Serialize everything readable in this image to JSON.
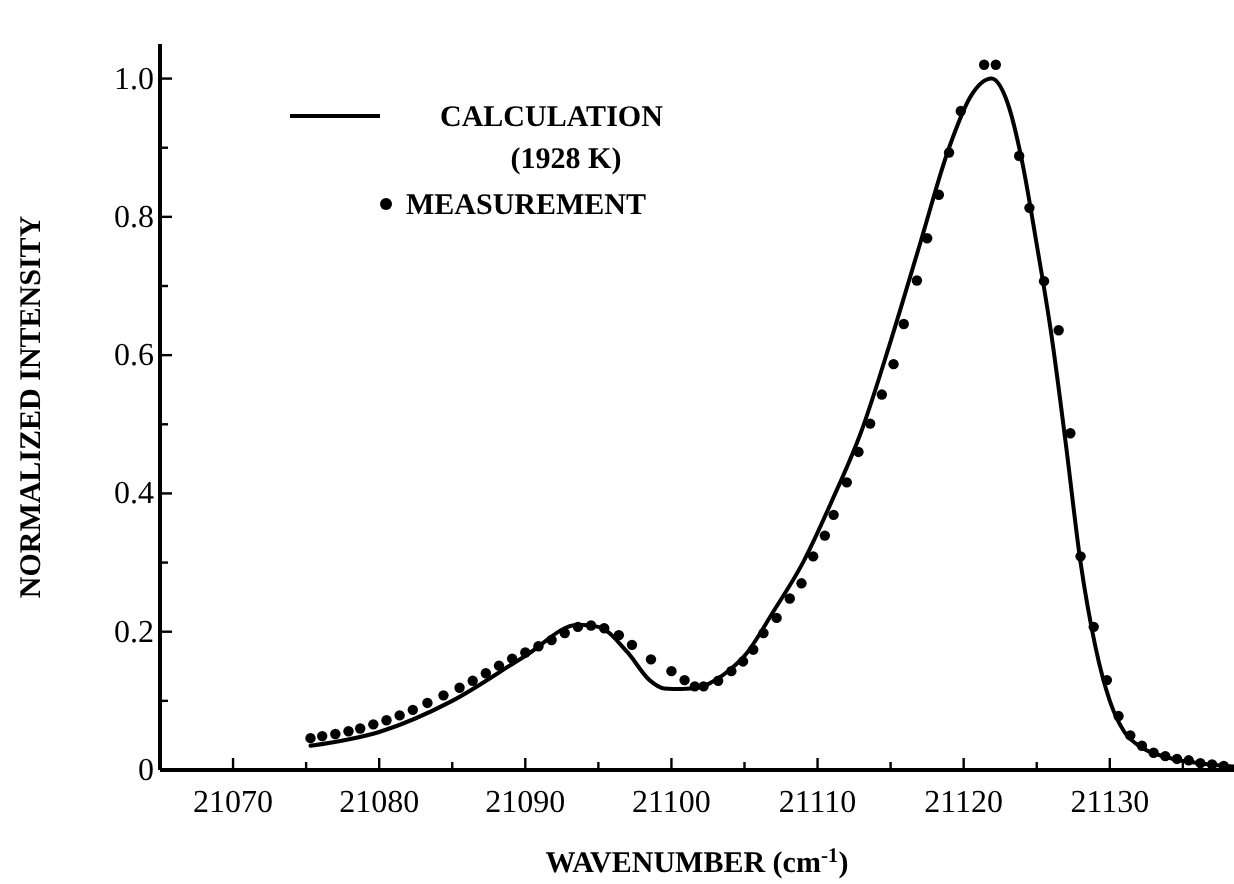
{
  "chart_data": {
    "type": "line",
    "xlabel": "WAVENUMBER (cm$^{-1}$)",
    "ylabel": "NORMALIZED INTENSITY",
    "xlim": [
      21065,
      21138.5
    ],
    "ylim": [
      0,
      1.05
    ],
    "xticks": [
      21070,
      21080,
      21090,
      21100,
      21110,
      21120,
      21130,
      {
        "value": 21075,
        "label": null
      },
      {
        "value": 21085,
        "label": null
      },
      {
        "value": 21095,
        "label": null
      },
      {
        "value": 21105,
        "label": null
      },
      {
        "value": 21115,
        "label": null
      },
      {
        "value": 21125,
        "label": null
      },
      {
        "value": 21135,
        "label": null
      }
    ],
    "yticks": [
      0,
      0.2,
      0.4,
      0.6,
      0.8,
      {
        "value": 1,
        "label": "1.0"
      },
      {
        "value": 0.1,
        "label": null
      },
      {
        "value": 0.3,
        "label": null
      },
      {
        "value": 0.5,
        "label": null
      },
      {
        "value": 0.7,
        "label": null
      },
      {
        "value": 0.9,
        "label": null
      }
    ],
    "grid": false,
    "legend": "top left",
    "annotations": [
      "(1928 K)"
    ],
    "series": [
      {
        "name": "CALCULATION",
        "color": "#000000",
        "line_style": "solid",
        "marker": "none",
        "x": [
          21075.3,
          21080,
          21085,
          21090,
          21093.6,
          21095,
          21097,
          21098.5,
          21099.5,
          21100.7,
          21102,
          21103,
          21104,
          21105,
          21107,
          21109,
          21111,
          21113,
          21115,
          21117,
          21119,
          21120.5,
          21121.9,
          21123,
          21124,
          21125,
          21126,
          21127,
          21128,
          21129,
          21130,
          21131,
          21132,
          21134,
          21136,
          21138.5
        ],
        "values": [
          0.035,
          0.055,
          0.1,
          0.165,
          0.21,
          0.207,
          0.17,
          0.13,
          0.118,
          0.117,
          0.12,
          0.13,
          0.145,
          0.165,
          0.23,
          0.3,
          0.39,
          0.49,
          0.62,
          0.76,
          0.9,
          0.975,
          1.0,
          0.965,
          0.88,
          0.76,
          0.63,
          0.47,
          0.3,
          0.18,
          0.1,
          0.055,
          0.035,
          0.018,
          0.01,
          0.005
        ]
      },
      {
        "name": "MEASUREMENT",
        "type": "scatter",
        "color": "#000000",
        "marker": "circle",
        "x": [
          21075.3,
          21076.1,
          21077,
          21077.9,
          21078.7,
          21079.6,
          21080.5,
          21081.4,
          21082.3,
          21083.3,
          21084.4,
          21085.5,
          21086.4,
          21087.3,
          21088.2,
          21089.1,
          21090,
          21090.9,
          21091.8,
          21092.7,
          21093.6,
          21094.5,
          21095.4,
          21096.4,
          21097.3,
          21098.6,
          21100,
          21100.9,
          21101.6,
          21102.2,
          21103.2,
          21104.1,
          21104.9,
          21105.6,
          21106.3,
          21107.2,
          21108.1,
          21108.9,
          21109.7,
          21110.5,
          21111.1,
          21112,
          21112.8,
          21113.6,
          21114.4,
          21115.2,
          21115.9,
          21116.8,
          21117.5,
          21118.3,
          21119,
          21119.8,
          21121.4,
          21122.2,
          21123.8,
          21124.5,
          21125.5,
          21126.5,
          21127.3,
          21128,
          21128.9,
          21129.8,
          21130.6,
          21131.4,
          21132.2,
          21133,
          21133.8,
          21134.6,
          21135.4,
          21136.2,
          21137,
          21137.8
        ],
        "values": [
          0.046,
          0.049,
          0.052,
          0.056,
          0.06,
          0.066,
          0.072,
          0.079,
          0.087,
          0.097,
          0.108,
          0.119,
          0.129,
          0.14,
          0.151,
          0.161,
          0.17,
          0.179,
          0.188,
          0.198,
          0.207,
          0.209,
          0.205,
          0.195,
          0.181,
          0.16,
          0.143,
          0.13,
          0.121,
          0.121,
          0.129,
          0.143,
          0.157,
          0.174,
          0.198,
          0.22,
          0.248,
          0.27,
          0.309,
          0.339,
          0.369,
          0.416,
          0.46,
          0.501,
          0.543,
          0.587,
          0.645,
          0.708,
          0.769,
          0.832,
          0.893,
          0.953,
          1.02,
          1.02,
          0.888,
          0.813,
          0.707,
          0.636,
          0.487,
          0.309,
          0.207,
          0.13,
          0.078,
          0.05,
          0.035,
          0.025,
          0.02,
          0.016,
          0.014,
          0.01,
          0.008,
          0.006
        ]
      }
    ]
  }
}
